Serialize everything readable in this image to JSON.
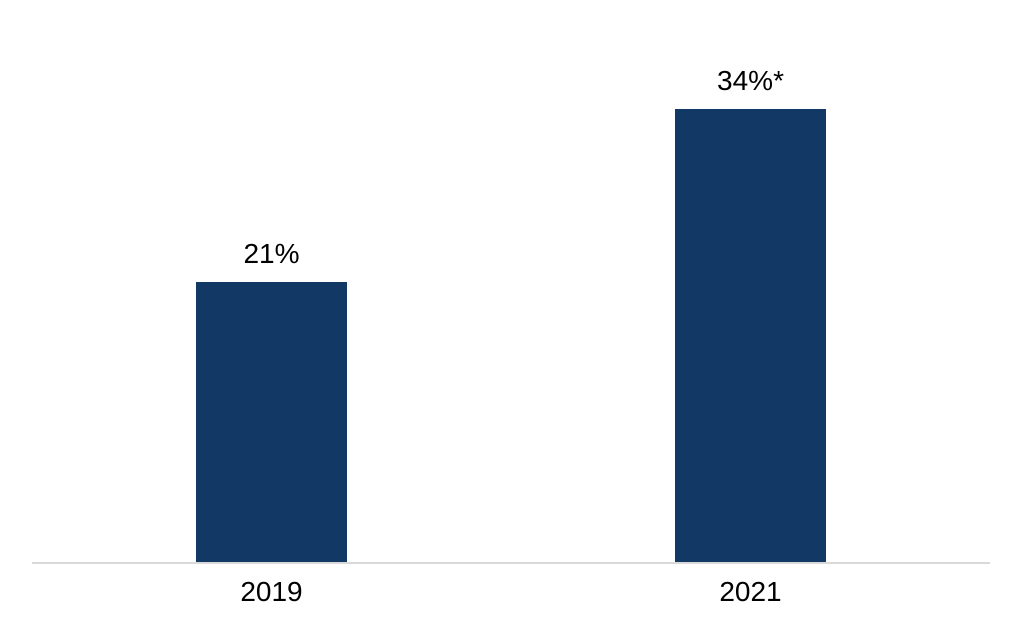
{
  "chart_data": {
    "type": "bar",
    "title": "",
    "xlabel": "",
    "ylabel": "",
    "categories": [
      "2019",
      "2021"
    ],
    "values": [
      21,
      34
    ],
    "data_labels": [
      "21%",
      "34%*"
    ],
    "ylim": [
      0,
      42
    ],
    "grid": false,
    "legend": false,
    "bar_color": "#123966",
    "axis_line_color": "#d9d9d9",
    "label_color": "#000000",
    "background_color": "#ffffff"
  }
}
